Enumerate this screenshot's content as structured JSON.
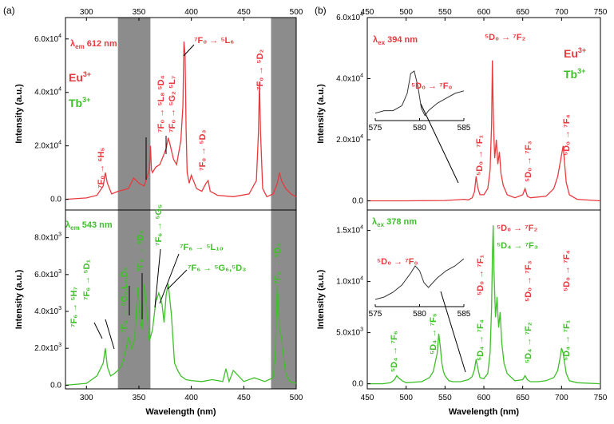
{
  "chart_data": [
    {
      "panel": "(a) top",
      "type": "line",
      "series": [
        {
          "name": "Eu3+ excitation",
          "color": "#e8393f",
          "x": [
            280,
            300,
            310,
            316,
            318,
            320,
            324,
            330,
            340,
            345,
            350,
            355,
            360,
            361,
            362,
            363,
            366,
            370,
            373,
            376,
            378,
            380,
            383,
            386,
            390,
            392,
            393,
            394,
            395,
            396,
            398,
            400,
            405,
            410,
            414,
            416,
            418,
            425,
            440,
            455,
            462,
            464,
            465,
            466,
            468,
            472,
            478,
            482,
            484,
            486,
            490,
            495,
            500
          ],
          "values": [
            0.0,
            0.05,
            0.15,
            0.5,
            1.0,
            0.6,
            0.2,
            0.3,
            0.4,
            0.8,
            0.6,
            0.5,
            1.1,
            2.0,
            1.1,
            1.0,
            1.2,
            1.3,
            1.6,
            1.9,
            2.3,
            2.0,
            1.5,
            1.3,
            2.2,
            3.5,
            5.9,
            5.4,
            2.6,
            1.0,
            0.6,
            0.9,
            0.4,
            0.3,
            0.6,
            0.7,
            0.3,
            0.15,
            0.1,
            0.2,
            0.7,
            2.5,
            4.4,
            2.5,
            0.4,
            0.1,
            0.2,
            0.6,
            1.0,
            0.7,
            0.4,
            0.2,
            0.1
          ]
        }
      ],
      "xlim": [
        280,
        500
      ],
      "ylim": [
        -0.4,
        6.8
      ],
      "yticks": [
        {
          "v": 0,
          "label": "0.0"
        },
        {
          "v": 2,
          "label": "2.0x10"
        },
        {
          "v": 4,
          "label": "4.0x10"
        },
        {
          "v": 6,
          "label": "6.0x10"
        }
      ],
      "ytick_exp": "4",
      "top_ticks": [
        "300",
        "350",
        "400",
        "450",
        "500"
      ],
      "ylabel": "Intensity (a.u.)",
      "shaded": [
        [
          330,
          361
        ],
        [
          476,
          500
        ]
      ]
    },
    {
      "panel": "(a) bottom",
      "type": "line",
      "series": [
        {
          "name": "Tb3+ excitation",
          "color": "#3fbf2a",
          "x": [
            280,
            300,
            310,
            316,
            318,
            320,
            323,
            326,
            330,
            333,
            336,
            340,
            343,
            346,
            349,
            351,
            353,
            355,
            357,
            360,
            363,
            366,
            369,
            372,
            374,
            376,
            378,
            381,
            384,
            387,
            390,
            395,
            400,
            410,
            420,
            430,
            433,
            436,
            440,
            450,
            460,
            470,
            474,
            478,
            480,
            482,
            484,
            486,
            488,
            490,
            494,
            500
          ],
          "values": [
            0.0,
            0.1,
            0.5,
            1.2,
            2.0,
            1.0,
            0.5,
            0.6,
            0.8,
            1.0,
            1.5,
            2.6,
            2.0,
            2.5,
            5.3,
            3.6,
            3.0,
            5.5,
            4.5,
            2.4,
            3.0,
            4.5,
            5.0,
            4.4,
            3.4,
            4.9,
            5.5,
            3.8,
            1.2,
            0.8,
            0.5,
            0.3,
            0.25,
            0.2,
            0.3,
            0.2,
            0.9,
            0.2,
            0.8,
            0.2,
            0.4,
            0.2,
            0.3,
            0.4,
            1.5,
            5.4,
            3.0,
            2.6,
            1.5,
            0.6,
            0.2,
            0.1
          ]
        }
      ],
      "xlim": [
        280,
        500
      ],
      "ylim": [
        -0.2,
        9.5
      ],
      "xticks": [
        "300",
        "350",
        "400",
        "450",
        "500"
      ],
      "yticks": [
        {
          "v": 0,
          "label": "0.0"
        },
        {
          "v": 2,
          "label": "2.0x10"
        },
        {
          "v": 4,
          "label": "4.0x10"
        },
        {
          "v": 6,
          "label": "6.0x10"
        },
        {
          "v": 8,
          "label": "8.0x10"
        }
      ],
      "ytick_exp": "3",
      "ylabel": "Intensity (a.u.)",
      "xlabel": "Wavelength (nm)",
      "shaded": [
        [
          330,
          361
        ],
        [
          476,
          500
        ]
      ]
    },
    {
      "panel": "(b) top",
      "type": "line",
      "series": [
        {
          "name": "Eu3+ emission",
          "color": "#e8393f",
          "x": [
            450,
            500,
            550,
            575,
            580,
            585,
            588,
            590,
            592,
            595,
            600,
            605,
            608,
            610,
            611,
            612,
            613,
            614,
            616,
            618,
            620,
            622,
            625,
            630,
            640,
            650,
            653,
            656,
            660,
            680,
            690,
            695,
            700,
            702,
            704,
            706,
            710,
            720,
            750
          ],
          "values": [
            0,
            0,
            0.01,
            0.05,
            0.03,
            0.1,
            0.3,
            0.8,
            0.45,
            0.2,
            0.2,
            0.4,
            1.0,
            2.5,
            4.6,
            3.0,
            2.0,
            1.4,
            2.0,
            1.2,
            1.6,
            0.9,
            0.5,
            0.2,
            0.1,
            0.2,
            0.4,
            0.15,
            0.1,
            0.15,
            0.4,
            0.8,
            1.5,
            1.8,
            1.2,
            0.6,
            0.2,
            0.05,
            0
          ]
        }
      ],
      "xlim": [
        450,
        750
      ],
      "ylim": [
        -0.3,
        6.0
      ],
      "top_ticks": [
        "450",
        "500",
        "550",
        "600",
        "650",
        "700",
        "750"
      ],
      "yticks": [
        {
          "v": 0,
          "label": "0.0"
        },
        {
          "v": 2,
          "label": "2.0x10"
        },
        {
          "v": 4,
          "label": "4.0x10"
        },
        {
          "v": 6,
          "label": "6.0x10"
        }
      ],
      "ytick_exp": "4",
      "ylabel": "Intensity (a.u.)",
      "inset": {
        "xlim": [
          575,
          585
        ],
        "xticks": [
          "575",
          "580",
          "585"
        ],
        "x": [
          575,
          576,
          577,
          578,
          578.6,
          579,
          579.4,
          579.8,
          580.2,
          580.6,
          581,
          582,
          583,
          584,
          585
        ],
        "values": [
          0.15,
          0.2,
          0.2,
          0.3,
          0.55,
          0.95,
          1.0,
          0.7,
          0.25,
          0.1,
          0.2,
          0.35,
          0.45,
          0.55,
          0.6
        ]
      }
    },
    {
      "panel": "(b) bottom",
      "type": "line",
      "series": [
        {
          "name": "Tb3+ emission",
          "color": "#3fbf2a",
          "x": [
            450,
            470,
            480,
            485,
            488,
            490,
            495,
            500,
            520,
            530,
            535,
            540,
            542,
            544,
            546,
            548,
            550,
            555,
            560,
            570,
            580,
            585,
            588,
            590,
            592,
            595,
            600,
            605,
            608,
            610,
            611,
            612,
            613,
            615,
            617,
            619,
            621,
            623,
            626,
            630,
            640,
            650,
            653,
            656,
            660,
            670,
            680,
            690,
            695,
            698,
            700,
            702,
            704,
            706,
            710,
            720,
            750
          ],
          "values": [
            0,
            0,
            0.1,
            0.4,
            0.8,
            0.6,
            0.3,
            0.1,
            0.2,
            0.6,
            1.2,
            3.0,
            4.9,
            3.6,
            2.0,
            1.2,
            0.8,
            0.3,
            0.2,
            0.2,
            0.4,
            0.7,
            1.4,
            2.4,
            1.6,
            0.6,
            0.5,
            1.0,
            3.0,
            7.5,
            12.5,
            15.5,
            11.0,
            6.5,
            8.5,
            5.5,
            7.0,
            4.0,
            2.0,
            1.0,
            0.3,
            0.4,
            0.8,
            0.4,
            0.2,
            0.2,
            0.3,
            0.6,
            1.3,
            2.5,
            3.5,
            3.0,
            2.0,
            1.0,
            0.3,
            0.1,
            0
          ]
        }
      ],
      "xlim": [
        450,
        750
      ],
      "ylim": [
        -0.5,
        17.0
      ],
      "xticks": [
        "450",
        "500",
        "550",
        "600",
        "650",
        "700",
        "750"
      ],
      "yticks": [
        {
          "v": 0,
          "label": "0.0"
        },
        {
          "v": 5,
          "label": "5.0x10"
        },
        {
          "v": 10,
          "label": "1.0x10"
        },
        {
          "v": 15,
          "label": "1.5x10"
        }
      ],
      "ytick_exps": [
        "",
        "3",
        "4",
        "4"
      ],
      "ylabel": "Intensity (a.u.)",
      "xlabel": "Wavelength (nm)",
      "inset": {
        "xlim": [
          575,
          585
        ],
        "xticks": [
          "575",
          "580",
          "585"
        ],
        "x": [
          575,
          576,
          577,
          578,
          579,
          579.5,
          580,
          580.5,
          581,
          582,
          583,
          584,
          585
        ],
        "values": [
          0.15,
          0.2,
          0.3,
          0.45,
          0.7,
          0.85,
          0.75,
          0.5,
          0.4,
          0.6,
          0.75,
          0.85,
          1.0
        ]
      }
    }
  ],
  "labels": {
    "panel_a": "(a)",
    "panel_b": "(b)",
    "a_top_lambda": "λ",
    "a_top_lambda_sub": "em",
    "a_top_lambda_val": " 612 nm",
    "a_top_eu": "Eu",
    "a_top_eu_sup": "3+",
    "a_top_tb": "Tb",
    "a_top_tb_sup": "3+",
    "a_bot_lambda": "λ",
    "a_bot_lambda_sub": "em",
    "a_bot_lambda_val": " 543 nm",
    "b_top_lambda": "λ",
    "b_top_lambda_sub": "ex",
    "b_top_lambda_val": " 394 nm",
    "b_top_eu": "Eu",
    "b_top_eu_sup": "3+",
    "b_top_tb": "Tb",
    "b_top_tb_sup": "3+",
    "b_bot_lambda": "λ",
    "b_bot_lambda_sub": "ex",
    "b_bot_lambda_val": " 378 nm",
    "arrow": "→",
    "a_tr1": "⁷F₀ → ⁶H₅",
    "a_tr2": "⁷F₀ → ⁵L₈ ⁵D₄",
    "a_tr3": "⁷F₀ → ⁵G₂ ⁵L₇",
    "a_tr4": "⁷F₀ → ⁵L₆",
    "a_tr5": "⁷F₀ → ⁵D₂",
    "a_tr6": "⁷F₀ → ⁵D₃",
    "a_bt1": "⁷F₆ → ⁵H₇",
    "a_bt2": "⁷F₆ → ⁵D₁",
    "a_bt3": "⁷F₆ → ⁵G₂,L₉,D₂",
    "a_bt4": "⁷F₆ → ⁵D₄",
    "a_bt5": "⁷F₆ → ⁵G₅",
    "a_bt6": "⁷F₆ → ⁵L₁₀",
    "a_bt7": "⁷F₆ → ⁵G₆,⁵D₃",
    "a_bt8": "⁷F₆ → ⁵D₄",
    "b_tr1": "⁵D₀ → ⁷F₀",
    "b_tr2": "⁵D₀ → ⁷F₂",
    "b_tr3": "⁵D₀ → ⁷F₁",
    "b_tr4": "⁵D₀ → ⁷F₃",
    "b_tr5": "⁵D₀ → ⁷F₄",
    "b_bt1": "⁵D₀ → ⁷F₀",
    "b_bt2": "⁵D₀ → ⁷F₂",
    "b_bt3": "⁵D₄ → ⁷F₃",
    "b_bt4": "⁵D₄ → ⁷F₆",
    "b_bt5": "⁵D₄ → ⁷F₅",
    "b_bt6": "⁵D₄ → ⁷F₄",
    "b_bt7": "⁵D₀ → ⁷F₁",
    "b_bt8": "⁵D₄ → ⁷F₂",
    "b_bt9": "⁵D₀ → ⁷F₃",
    "b_bt10": "⁵D₄ → ⁷F₁",
    "b_bt11": "⁵D₀ → ⁷F₄"
  }
}
